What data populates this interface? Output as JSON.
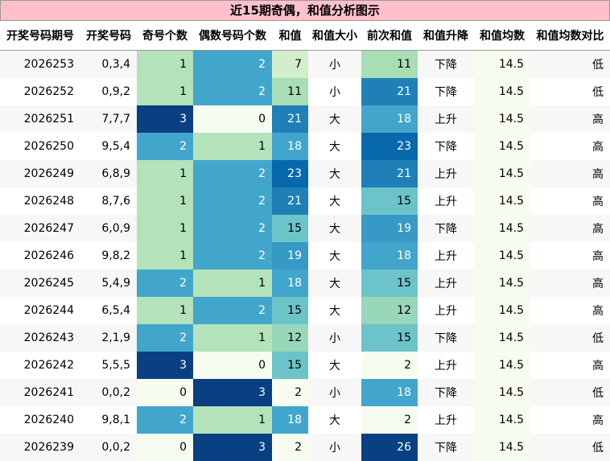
{
  "chart_data": {
    "type": "table",
    "title": "近15期奇偶，和值分析图示",
    "columns": [
      "开奖号码期号",
      "开奖号码",
      "奇号个数",
      "偶数号码个数",
      "和值",
      "和值大小",
      "前次和值",
      "和值升降",
      "和值均数",
      "和值均数对比"
    ],
    "rows": [
      [
        "2026253",
        "0,3,4",
        1,
        2,
        7,
        "小",
        11,
        "下降",
        14.5,
        "低"
      ],
      [
        "2026252",
        "0,9,2",
        1,
        2,
        11,
        "小",
        21,
        "下降",
        14.5,
        "低"
      ],
      [
        "2026251",
        "7,7,7",
        3,
        0,
        21,
        "大",
        18,
        "上升",
        14.5,
        "高"
      ],
      [
        "2026250",
        "9,5,4",
        2,
        1,
        18,
        "大",
        23,
        "下降",
        14.5,
        "高"
      ],
      [
        "2026249",
        "6,8,9",
        1,
        2,
        23,
        "大",
        21,
        "上升",
        14.5,
        "高"
      ],
      [
        "2026248",
        "8,7,6",
        1,
        2,
        21,
        "大",
        15,
        "上升",
        14.5,
        "高"
      ],
      [
        "2026247",
        "6,0,9",
        1,
        2,
        15,
        "大",
        19,
        "下降",
        14.5,
        "高"
      ],
      [
        "2026246",
        "9,8,2",
        1,
        2,
        19,
        "大",
        18,
        "上升",
        14.5,
        "高"
      ],
      [
        "2026245",
        "5,4,9",
        2,
        1,
        18,
        "大",
        15,
        "上升",
        14.5,
        "高"
      ],
      [
        "2026244",
        "6,5,4",
        1,
        2,
        15,
        "大",
        12,
        "上升",
        14.5,
        "高"
      ],
      [
        "2026243",
        "2,1,9",
        2,
        1,
        12,
        "小",
        15,
        "下降",
        14.5,
        "低"
      ],
      [
        "2026242",
        "5,5,5",
        3,
        0,
        15,
        "大",
        2,
        "上升",
        14.5,
        "高"
      ],
      [
        "2026241",
        "0,0,2",
        0,
        3,
        2,
        "小",
        18,
        "下降",
        14.5,
        "低"
      ],
      [
        "2026240",
        "9,8,1",
        2,
        1,
        18,
        "大",
        2,
        "上升",
        14.5,
        "高"
      ],
      [
        "2026239",
        "0,0,2",
        0,
        3,
        2,
        "小",
        26,
        "下降",
        14.5,
        "低"
      ]
    ],
    "heatmap_columns": [
      2,
      3,
      4,
      6,
      8
    ],
    "heatmap_ranges": [
      [
        0,
        3
      ],
      [
        0,
        3
      ],
      [
        2,
        26
      ],
      [
        2,
        26
      ],
      [
        14.5,
        14.5
      ]
    ],
    "colorscale": [
      "#f7fcf0",
      "#e0f3db",
      "#ccebc5",
      "#a8ddb5",
      "#7bccc4",
      "#4eb3d3",
      "#2b8cbe",
      "#0868ac",
      "#084081"
    ],
    "title_background": "#ffc0cb",
    "alt_row_background": "#f7f7f7"
  }
}
